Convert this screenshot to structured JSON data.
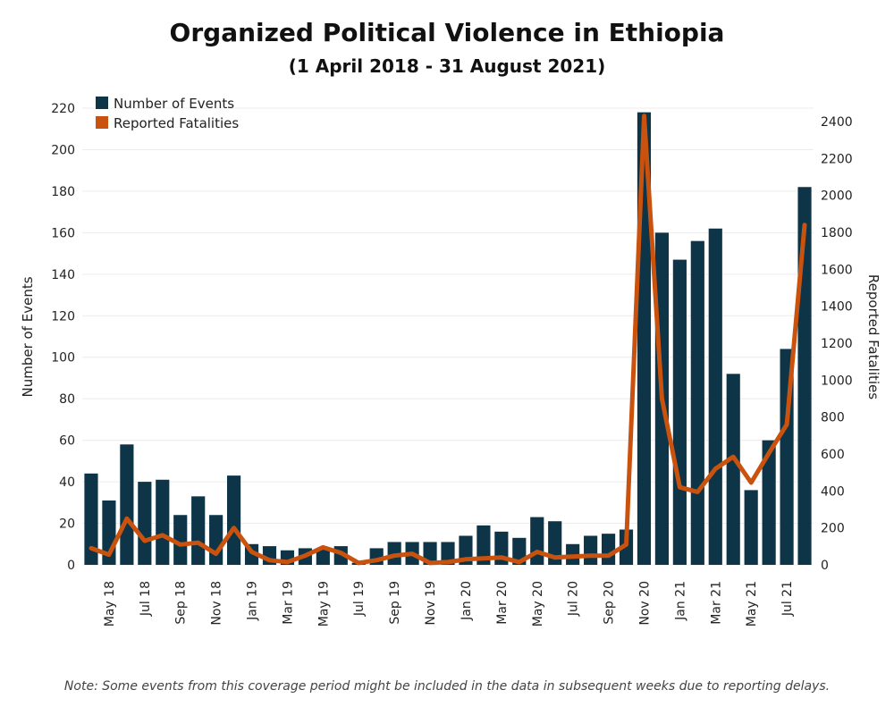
{
  "title": "Organized Political Violence in Ethiopia",
  "subtitle": "(1 April 2018 - 31 August 2021)",
  "note": "Note: Some events from this coverage period might be included in the data in subsequent weeks due to reporting delays.",
  "colors": {
    "bars": "#0d3447",
    "line": "#c9530e"
  },
  "chart_data": {
    "type": "bar",
    "categories": [
      "Apr 18",
      "May 18",
      "Jun 18",
      "Jul 18",
      "Aug 18",
      "Sep 18",
      "Oct 18",
      "Nov 18",
      "Dec 18",
      "Jan 19",
      "Feb 19",
      "Mar 19",
      "Apr 19",
      "May 19",
      "Jun 19",
      "Jul 19",
      "Aug 19",
      "Sep 19",
      "Oct 19",
      "Nov 19",
      "Dec 19",
      "Jan 20",
      "Feb 20",
      "Mar 20",
      "Apr 20",
      "May 20",
      "Jun 20",
      "Jul 20",
      "Aug 20",
      "Sep 20",
      "Oct 20",
      "Nov 20",
      "Dec 20",
      "Jan 21",
      "Feb 21",
      "Mar 21",
      "Apr 21",
      "May 21",
      "Jun 21",
      "Jul 21",
      "Aug 21"
    ],
    "xtick_labels": [
      "May 18",
      "Jul 18",
      "Sep 18",
      "Nov 18",
      "Jan 19",
      "Mar 19",
      "May 19",
      "Jul 19",
      "Sep 19",
      "Nov 19",
      "Jan 20",
      "Mar 20",
      "May 20",
      "Jul 20",
      "Sep 20",
      "Nov 20",
      "Jan 21",
      "Mar 21",
      "May 21",
      "Jul 21"
    ],
    "series": [
      {
        "name": "Number of Events",
        "type": "bar",
        "axis": "left",
        "values": [
          44,
          31,
          58,
          40,
          41,
          24,
          33,
          24,
          43,
          10,
          9,
          7,
          8,
          8,
          9,
          1,
          8,
          11,
          11,
          11,
          11,
          14,
          19,
          16,
          13,
          23,
          21,
          10,
          14,
          15,
          17,
          218,
          160,
          147,
          156,
          162,
          92,
          36,
          60,
          104,
          182
        ]
      },
      {
        "name": "Reported Fatalities",
        "type": "line",
        "axis": "right",
        "values": [
          90,
          55,
          250,
          130,
          160,
          110,
          120,
          60,
          200,
          70,
          25,
          15,
          50,
          95,
          65,
          10,
          25,
          50,
          60,
          10,
          15,
          30,
          35,
          40,
          15,
          70,
          40,
          45,
          50,
          50,
          110,
          2430,
          900,
          420,
          395,
          520,
          585,
          445,
          605,
          760,
          1840
        ]
      }
    ],
    "ylabel": "Number of Events",
    "y2label": "Reported Fatalities",
    "ylim": [
      0,
      220
    ],
    "y2lim": [
      0,
      2400
    ],
    "yticks": [
      0,
      20,
      40,
      60,
      80,
      100,
      120,
      140,
      160,
      180,
      200,
      220
    ],
    "y2ticks": [
      0,
      200,
      400,
      600,
      800,
      1000,
      1200,
      1400,
      1600,
      1800,
      2000,
      2200,
      2400
    ],
    "grid": true,
    "legend_position": "top-left"
  }
}
